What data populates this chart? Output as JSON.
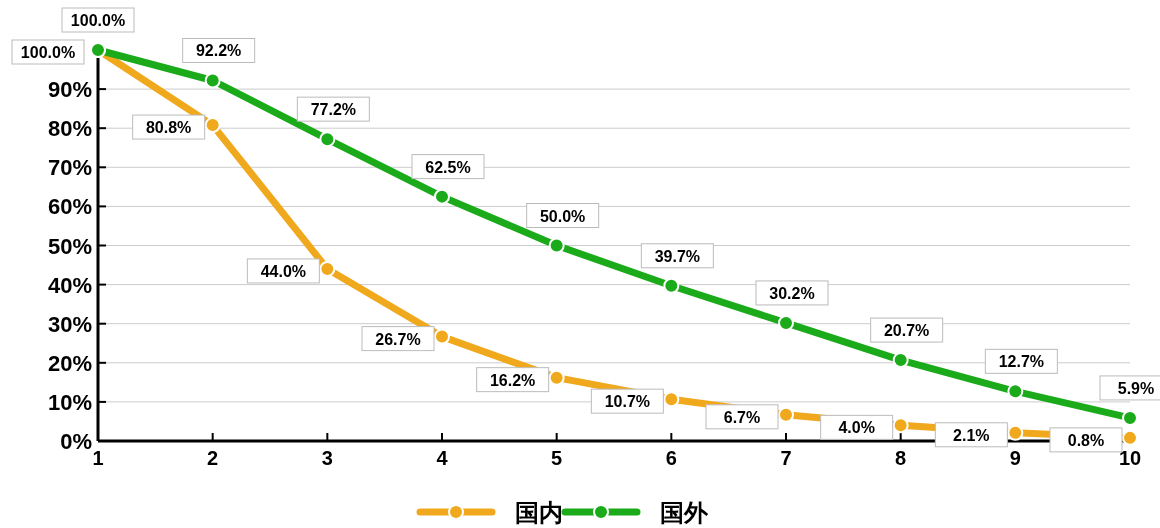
{
  "chart_data": {
    "type": "line",
    "x": [
      1,
      2,
      3,
      4,
      5,
      6,
      7,
      8,
      9,
      10
    ],
    "series": [
      {
        "name": "国内",
        "color": "#f0a81c",
        "values": [
          100.0,
          80.8,
          44.0,
          26.7,
          16.2,
          10.7,
          6.7,
          4.0,
          2.1,
          0.8
        ],
        "value_labels": [
          "100.0%",
          "80.8%",
          "44.0%",
          "26.7%",
          "16.2%",
          "10.7%",
          "6.7%",
          "4.0%",
          "2.1%",
          "0.8%"
        ]
      },
      {
        "name": "国外",
        "color": "#1aaa1a",
        "values": [
          100.0,
          92.2,
          77.2,
          62.5,
          50.0,
          39.7,
          30.2,
          20.7,
          12.7,
          5.9
        ],
        "value_labels": [
          "100.0%",
          "92.2%",
          "77.2%",
          "62.5%",
          "50.0%",
          "39.7%",
          "30.2%",
          "20.7%",
          "12.7%",
          "5.9%"
        ]
      }
    ],
    "xlim": [
      1,
      10
    ],
    "xticks": [
      1,
      2,
      3,
      4,
      5,
      6,
      7,
      8,
      9,
      10
    ],
    "ylim": [
      0,
      100
    ],
    "yticks": [
      {
        "value": 0,
        "label": "0%"
      },
      {
        "value": 10,
        "label": "10%"
      },
      {
        "value": 20,
        "label": "20%"
      },
      {
        "value": 30,
        "label": "30%"
      },
      {
        "value": 40,
        "label": "40%"
      },
      {
        "value": 50,
        "label": "50%"
      },
      {
        "value": 60,
        "label": "60%"
      },
      {
        "value": 70,
        "label": "70%"
      },
      {
        "value": 80,
        "label": "80%"
      },
      {
        "value": 90,
        "label": "90%"
      }
    ],
    "grid": "y",
    "legend": "bottom",
    "marker": "circle",
    "line_style": "solid"
  }
}
